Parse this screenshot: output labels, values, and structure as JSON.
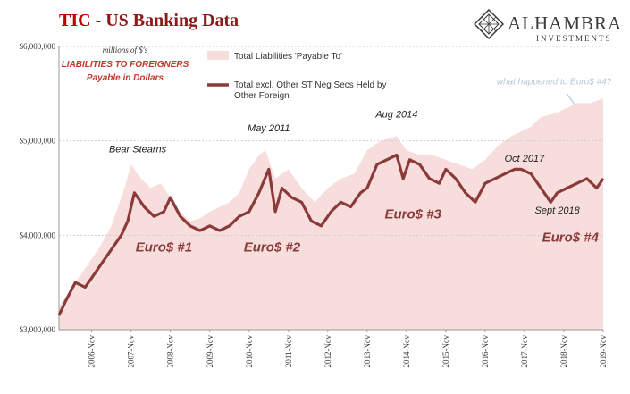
{
  "header": {
    "title_prefix": "TIC",
    "title_rest": " - US Banking Data",
    "logo_name": "ALHAMBRA",
    "logo_sub": "INVESTMENTS",
    "logo_icon": "diamond-lattice-icon"
  },
  "colors": {
    "liabilities_fill": "#f7dedd",
    "excl_line": "#8b3a3a",
    "annotation": "#8b3a3a",
    "grid": "#cfcfcf"
  },
  "chart_data": {
    "type": "area",
    "units_note": "millions of $'s",
    "subtitle": "LIABILITIES TO FOREIGNERS",
    "subtitle2": "Payable in Dollars",
    "yticks": [
      "$3,000,000",
      "$4,000,000",
      "$5,000,000",
      "$6,000,000"
    ],
    "ylim": [
      3000000,
      6000000
    ],
    "x_range": [
      "2006-01",
      "2019-11"
    ],
    "xticks": [
      "2006-Nov",
      "2007-Nov",
      "2008-Nov",
      "2009-Nov",
      "2010-Nov",
      "2011-Nov",
      "2012-Nov",
      "2013-Nov",
      "2014-Nov",
      "2015-Nov",
      "2016-Nov",
      "2017-Nov",
      "2018-Nov",
      "2019-Nov"
    ],
    "grid": true,
    "legend_position": "top-left",
    "series": [
      {
        "name": "Total Liabilities 'Payable To'",
        "style": "area",
        "points": [
          [
            "2006-01",
            3250000
          ],
          [
            "2006-05",
            3450000
          ],
          [
            "2006-09",
            3650000
          ],
          [
            "2007-01",
            3850000
          ],
          [
            "2007-05",
            4100000
          ],
          [
            "2007-09",
            4500000
          ],
          [
            "2007-11",
            4750000
          ],
          [
            "2008-02",
            4600000
          ],
          [
            "2008-05",
            4500000
          ],
          [
            "2008-08",
            4550000
          ],
          [
            "2008-11",
            4400000
          ],
          [
            "2009-02",
            4250000
          ],
          [
            "2009-05",
            4150000
          ],
          [
            "2009-08",
            4180000
          ],
          [
            "2009-11",
            4250000
          ],
          [
            "2010-02",
            4300000
          ],
          [
            "2010-05",
            4350000
          ],
          [
            "2010-08",
            4450000
          ],
          [
            "2010-11",
            4700000
          ],
          [
            "2011-02",
            4850000
          ],
          [
            "2011-04",
            4900000
          ],
          [
            "2011-07",
            4600000
          ],
          [
            "2011-11",
            4700000
          ],
          [
            "2012-03",
            4500000
          ],
          [
            "2012-07",
            4350000
          ],
          [
            "2012-11",
            4500000
          ],
          [
            "2013-03",
            4600000
          ],
          [
            "2013-07",
            4650000
          ],
          [
            "2013-11",
            4900000
          ],
          [
            "2014-03",
            5000000
          ],
          [
            "2014-08",
            5050000
          ],
          [
            "2014-11",
            4900000
          ],
          [
            "2015-03",
            4850000
          ],
          [
            "2015-07",
            4850000
          ],
          [
            "2015-11",
            4800000
          ],
          [
            "2016-03",
            4750000
          ],
          [
            "2016-07",
            4700000
          ],
          [
            "2016-11",
            4800000
          ],
          [
            "2017-03",
            4950000
          ],
          [
            "2017-07",
            5050000
          ],
          [
            "2017-10",
            5100000
          ],
          [
            "2018-01",
            5150000
          ],
          [
            "2018-04",
            5250000
          ],
          [
            "2018-09",
            5300000
          ],
          [
            "2018-12",
            5350000
          ],
          [
            "2019-03",
            5400000
          ],
          [
            "2019-07",
            5400000
          ],
          [
            "2019-11",
            5450000
          ]
        ]
      },
      {
        "name": "Total excl. Other ST Neg Secs Held by Other Foreign",
        "style": "line",
        "points": [
          [
            "2006-01",
            3150000
          ],
          [
            "2006-03",
            3300000
          ],
          [
            "2006-06",
            3500000
          ],
          [
            "2006-09",
            3450000
          ],
          [
            "2006-11",
            3550000
          ],
          [
            "2007-02",
            3700000
          ],
          [
            "2007-05",
            3850000
          ],
          [
            "2007-08",
            4000000
          ],
          [
            "2007-10",
            4150000
          ],
          [
            "2007-12",
            4450000
          ],
          [
            "2008-03",
            4300000
          ],
          [
            "2008-06",
            4200000
          ],
          [
            "2008-09",
            4250000
          ],
          [
            "2008-11",
            4400000
          ],
          [
            "2009-02",
            4200000
          ],
          [
            "2009-05",
            4100000
          ],
          [
            "2009-08",
            4050000
          ],
          [
            "2009-11",
            4100000
          ],
          [
            "2010-02",
            4050000
          ],
          [
            "2010-05",
            4100000
          ],
          [
            "2010-08",
            4200000
          ],
          [
            "2010-11",
            4250000
          ],
          [
            "2011-02",
            4450000
          ],
          [
            "2011-05",
            4700000
          ],
          [
            "2011-07",
            4250000
          ],
          [
            "2011-09",
            4500000
          ],
          [
            "2011-12",
            4400000
          ],
          [
            "2012-03",
            4350000
          ],
          [
            "2012-06",
            4150000
          ],
          [
            "2012-09",
            4100000
          ],
          [
            "2012-12",
            4250000
          ],
          [
            "2013-03",
            4350000
          ],
          [
            "2013-06",
            4300000
          ],
          [
            "2013-09",
            4450000
          ],
          [
            "2013-11",
            4500000
          ],
          [
            "2014-02",
            4750000
          ],
          [
            "2014-05",
            4800000
          ],
          [
            "2014-08",
            4850000
          ],
          [
            "2014-10",
            4600000
          ],
          [
            "2014-12",
            4800000
          ],
          [
            "2015-03",
            4750000
          ],
          [
            "2015-06",
            4600000
          ],
          [
            "2015-09",
            4550000
          ],
          [
            "2015-11",
            4700000
          ],
          [
            "2016-02",
            4600000
          ],
          [
            "2016-05",
            4450000
          ],
          [
            "2016-08",
            4350000
          ],
          [
            "2016-11",
            4550000
          ],
          [
            "2017-02",
            4600000
          ],
          [
            "2017-05",
            4650000
          ],
          [
            "2017-08",
            4700000
          ],
          [
            "2017-10",
            4700000
          ],
          [
            "2018-01",
            4650000
          ],
          [
            "2018-04",
            4500000
          ],
          [
            "2018-07",
            4350000
          ],
          [
            "2018-09",
            4450000
          ],
          [
            "2018-12",
            4500000
          ],
          [
            "2019-03",
            4550000
          ],
          [
            "2019-06",
            4600000
          ],
          [
            "2019-09",
            4500000
          ],
          [
            "2019-11",
            4600000
          ]
        ]
      }
    ],
    "annotations": [
      {
        "text": "Bear Stearns",
        "x": "2008-01",
        "y": 4880000,
        "style": "plain"
      },
      {
        "text": "May 2011",
        "x": "2011-05",
        "y": 5100000,
        "style": "plain"
      },
      {
        "text": "Aug 2014",
        "x": "2014-08",
        "y": 5250000,
        "style": "plain"
      },
      {
        "text": "Oct 2017",
        "x": "2017-11",
        "y": 4780000,
        "style": "plain"
      },
      {
        "text": "Sept 2018",
        "x": "2018-09",
        "y": 4230000,
        "style": "plain"
      },
      {
        "text": "Euro$ #1",
        "x": "2008-09",
        "y": 3830000,
        "style": "euro"
      },
      {
        "text": "Euro$ #2",
        "x": "2011-06",
        "y": 3830000,
        "style": "euro"
      },
      {
        "text": "Euro$ #3",
        "x": "2015-01",
        "y": 4180000,
        "style": "euro"
      },
      {
        "text": "Euro$ #4",
        "x": "2019-01",
        "y": 3930000,
        "style": "euro"
      },
      {
        "text": "what happened to Euro$ #4?",
        "x": "2018-08",
        "y": 5600000,
        "style": "faint"
      }
    ]
  }
}
